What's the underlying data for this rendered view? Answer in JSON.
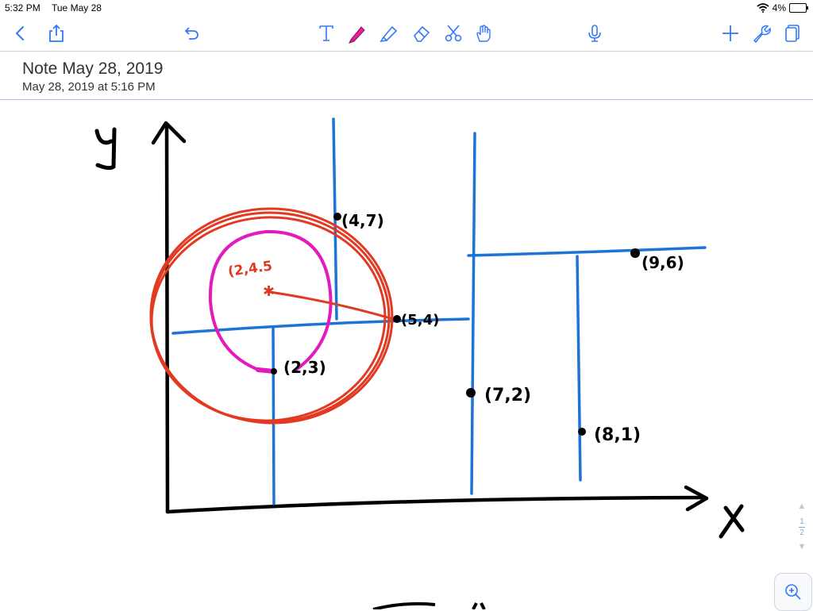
{
  "status_bar": {
    "time": "5:32 PM",
    "date": "Tue May 28",
    "battery": "4%"
  },
  "toolbar": {
    "back": "chevron-left-icon",
    "share": "share-icon",
    "undo": "undo-icon",
    "tools": [
      "text-tool-icon",
      "pen-tool-icon",
      "highlighter-tool-icon",
      "eraser-tool-icon",
      "scissors-tool-icon",
      "hand-tool-icon"
    ],
    "mic": "microphone-icon",
    "add": "plus-icon",
    "settings": "wrench-icon",
    "pages": "pages-icon",
    "accent_color": "#3478f6",
    "pen_color": "#e8219a"
  },
  "note": {
    "title": "Note May 28, 2019",
    "subtitle": "May 28, 2019 at 5:16 PM"
  },
  "drawing": {
    "y_axis_label": "y",
    "x_axis_label": "X",
    "labels": {
      "p1": "(4,7)",
      "p2": "(2,4.5",
      "p3": "(5,4)",
      "p4": "(2,3)",
      "p5": "(9,6)",
      "p6": "(7,2)",
      "p7": "(8,1)"
    },
    "colors": {
      "axes": "#000000",
      "grid_lines": "#1e73d8",
      "outer_circle": "#e23a22",
      "inner_circle": "#e21bbf"
    }
  },
  "page_indicator": {
    "current": "1",
    "total": "2"
  }
}
